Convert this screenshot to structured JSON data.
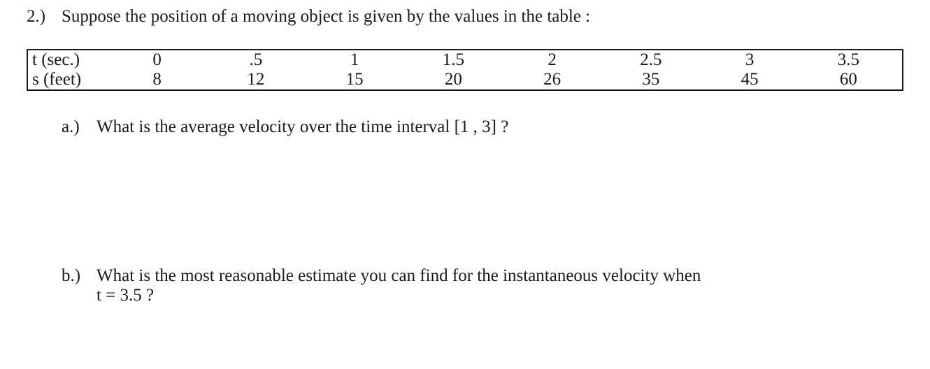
{
  "question": {
    "number": "2.)",
    "prompt": "Suppose the position of a moving object is given by the values in the table :"
  },
  "table": {
    "type": "table",
    "font_size_pt": 19,
    "border_color": "#1a1a1a",
    "background_color": "#ffffff",
    "text_color": "#1a1a1a",
    "row_headers": [
      "t  (sec.)",
      "s  (feet)"
    ],
    "columns": [
      "0",
      ".5",
      "1",
      "1.5",
      "2",
      "2.5",
      "3",
      "3.5"
    ],
    "rows": [
      [
        "0",
        ".5",
        "1",
        "1.5",
        "2",
        "2.5",
        "3",
        "3.5"
      ],
      [
        "8",
        "12",
        "15",
        "20",
        "26",
        "35",
        "45",
        "60"
      ]
    ]
  },
  "parts": {
    "a": {
      "label": "a.)",
      "text": "What is the average velocity over the time interval [1 , 3] ?"
    },
    "b": {
      "label": "b.)",
      "line1": "What is the most reasonable estimate you can find for the instantaneous velocity when",
      "line2": "t = 3.5 ?"
    }
  }
}
